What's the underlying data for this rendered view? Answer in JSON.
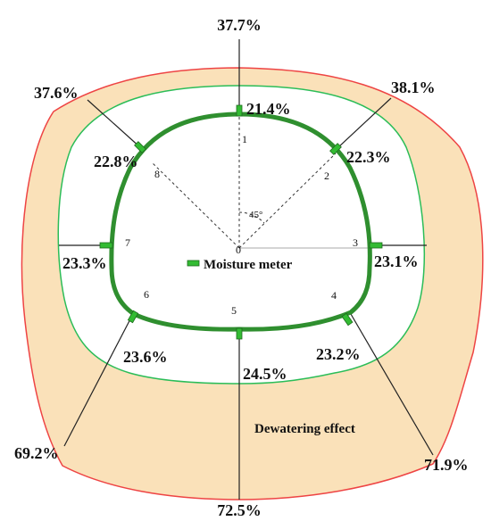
{
  "colors": {
    "outer_fill": "#fae1b9",
    "outer_stroke": "#ee4444",
    "middle_stroke": "#2bbd58",
    "lining": "#2f8f2f",
    "meter": "#33bb33",
    "radial_line": "#222222"
  },
  "angle_label": "45°",
  "legend": {
    "icon": "moisture-meter-icon",
    "label": "Moisture meter"
  },
  "effect_label": "Dewatering effect",
  "points": [
    {
      "id": "0",
      "label": "0"
    },
    {
      "id": "1",
      "label": "1",
      "inner": "21.4%",
      "outer": "37.7%"
    },
    {
      "id": "2",
      "label": "2",
      "inner": "22.3%",
      "outer": "38.1%"
    },
    {
      "id": "3",
      "label": "3",
      "inner": "23.1%"
    },
    {
      "id": "4",
      "label": "4",
      "inner": "23.2%",
      "outer": "71.9%"
    },
    {
      "id": "5",
      "label": "5",
      "inner": "24.5%",
      "outer": "72.5%"
    },
    {
      "id": "6",
      "label": "6",
      "inner": "23.6%",
      "outer": "69.2%"
    },
    {
      "id": "7",
      "label": "7",
      "inner": "23.3%"
    },
    {
      "id": "8",
      "label": "8",
      "inner": "22.8%",
      "outer": "37.6%"
    }
  ]
}
